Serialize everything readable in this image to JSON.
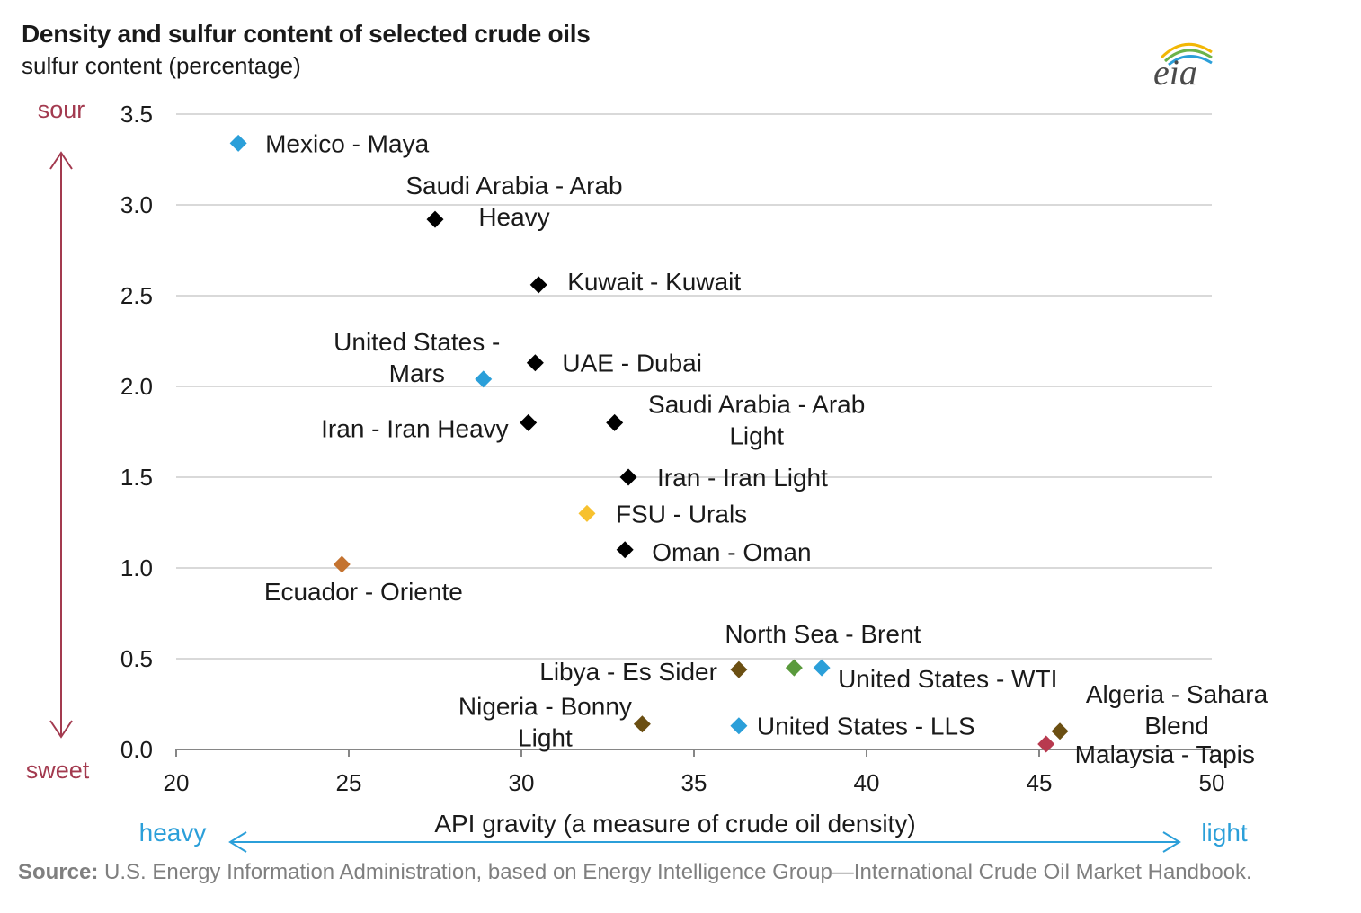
{
  "title": "Density and sulfur content of selected crude oils",
  "subtitle": "sulfur content (percentage)",
  "logo": {
    "text": "eia",
    "icon": "eia-logo"
  },
  "source": {
    "label": "Source:",
    "text": "U.S. Energy Information Administration, based on Energy Intelligence Group—International Crude Oil Market Handbook."
  },
  "colors": {
    "black": "#000000",
    "blue": "#2b9fd9",
    "yellow": "#f7c12e",
    "orange": "#c47330",
    "darkbrown": "#6b4f12",
    "green": "#5a9a3c",
    "red": "#b83a4f",
    "sweetsour": "#a33a4f",
    "heavylight": "#2b9fd9",
    "grid": "#d9d9d9",
    "axis": "#868686"
  },
  "chart_data": {
    "type": "scatter",
    "xlabel": "API gravity (a measure of crude oil density)",
    "ylabel": "sulfur content (percentage)",
    "xlim": [
      20,
      50
    ],
    "ylim": [
      0,
      3.5
    ],
    "xticks": [
      "20",
      "25",
      "30",
      "35",
      "40",
      "45",
      "50"
    ],
    "yticks": [
      "0.0",
      "0.5",
      "1.0",
      "1.5",
      "2.0",
      "2.5",
      "3.0",
      "3.5"
    ],
    "grid": true,
    "y_annotations": {
      "top": "sour",
      "bottom": "sweet"
    },
    "x_annotations": {
      "left": "heavy",
      "right": "light"
    },
    "points": [
      {
        "label": [
          "Mexico - Maya"
        ],
        "x": 21.8,
        "y": 3.34,
        "color": "blue"
      },
      {
        "label": [
          "Saudi Arabia - Arab",
          "Heavy"
        ],
        "x": 27.5,
        "y": 2.92,
        "color": "black"
      },
      {
        "label": [
          "Kuwait - Kuwait"
        ],
        "x": 30.5,
        "y": 2.56,
        "color": "black"
      },
      {
        "label": [
          "United States -",
          "Mars"
        ],
        "x": 28.9,
        "y": 2.04,
        "color": "blue"
      },
      {
        "label": [
          "UAE - Dubai"
        ],
        "x": 30.4,
        "y": 2.13,
        "color": "black"
      },
      {
        "label": [
          "Iran - Iran Heavy"
        ],
        "x": 30.2,
        "y": 1.8,
        "color": "black"
      },
      {
        "label": [
          "Saudi Arabia - Arab",
          "Light"
        ],
        "x": 32.7,
        "y": 1.8,
        "color": "black"
      },
      {
        "label": [
          "Iran - Iran Light"
        ],
        "x": 33.1,
        "y": 1.5,
        "color": "black"
      },
      {
        "label": [
          "FSU - Urals"
        ],
        "x": 31.9,
        "y": 1.3,
        "color": "yellow"
      },
      {
        "label": [
          "Oman - Oman"
        ],
        "x": 33.0,
        "y": 1.1,
        "color": "black"
      },
      {
        "label": [
          "Ecuador - Oriente"
        ],
        "x": 24.8,
        "y": 1.02,
        "color": "orange"
      },
      {
        "label": [
          "North Sea - Brent"
        ],
        "x": 37.9,
        "y": 0.45,
        "color": "green"
      },
      {
        "label": [
          "Libya - Es Sider"
        ],
        "x": 36.3,
        "y": 0.44,
        "color": "darkbrown"
      },
      {
        "label": [
          "United States - WTI"
        ],
        "x": 38.7,
        "y": 0.45,
        "color": "blue"
      },
      {
        "label": [
          "Nigeria - Bonny",
          "Light"
        ],
        "x": 33.5,
        "y": 0.14,
        "color": "darkbrown"
      },
      {
        "label": [
          "United States - LLS"
        ],
        "x": 36.3,
        "y": 0.13,
        "color": "blue"
      },
      {
        "label": [
          "Algeria - Sahara",
          "Blend"
        ],
        "x": 45.6,
        "y": 0.1,
        "color": "darkbrown"
      },
      {
        "label": [
          "Malaysia - Tapis"
        ],
        "x": 45.2,
        "y": 0.03,
        "color": "red"
      }
    ]
  }
}
